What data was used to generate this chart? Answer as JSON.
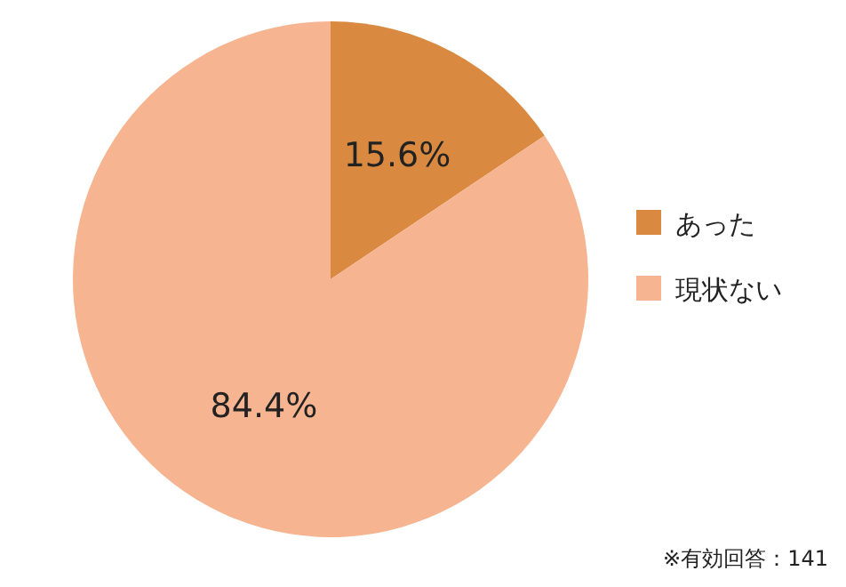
{
  "chart_data": {
    "type": "pie",
    "categories": [
      "あった",
      "現状ない"
    ],
    "values": [
      15.6,
      84.4
    ],
    "colors": [
      "#d98a40",
      "#f6b590"
    ],
    "value_labels": [
      "15.6%",
      "84.4%"
    ],
    "legend": "right",
    "annotations": [
      "※有効回答：141"
    ]
  }
}
